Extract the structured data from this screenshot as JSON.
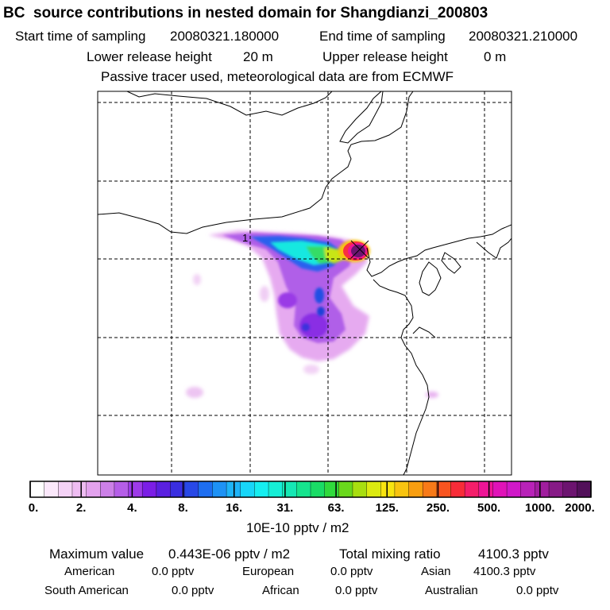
{
  "header": {
    "title": "BC  source contributions in nested domain for Shangdianzi_200803",
    "start_label": "Start time of sampling",
    "start_value": "20080321.180000",
    "end_label": "End time of sampling",
    "end_value": "20080321.210000",
    "lower_label": "Lower release height",
    "lower_value": "20 m",
    "upper_label": "Upper release height",
    "upper_value": "0 m",
    "note": "Passive tracer used, meteorological data are from ECMWF"
  },
  "map": {
    "site_marker_label": "1",
    "gridlines": "dashed"
  },
  "colorbar": {
    "unit": "10E-10 pptv / m2",
    "tick_labels": [
      "0.",
      "2.",
      "4.",
      "8.",
      "16.",
      "31.",
      "63.",
      "125.",
      "250.",
      "500.",
      "1000.",
      "2000."
    ],
    "colors": [
      "#ffffff",
      "#fbe8fb",
      "#f4d2f6",
      "#eebcf2",
      "#e3a2ee",
      "#cc80e8",
      "#b55ee8",
      "#9d3ae8",
      "#7b1ee6",
      "#5a20e0",
      "#3a2ee0",
      "#2848e6",
      "#1e6ef0",
      "#1e92f5",
      "#1eb4f8",
      "#18d6f8",
      "#16eef0",
      "#16eed6",
      "#16e8b4",
      "#16e48e",
      "#1adc66",
      "#30da3c",
      "#6ad81c",
      "#a8de10",
      "#dcea10",
      "#f8e410",
      "#f8c410",
      "#f89e10",
      "#f87a18",
      "#f85420",
      "#f82c38",
      "#f41e6a",
      "#ee1496",
      "#e012b8",
      "#d018c8",
      "#b822b8",
      "#a01e9e",
      "#861a86",
      "#6c1470",
      "#52105a"
    ]
  },
  "stats": {
    "max_label": "Maximum value",
    "max_value": "0.443E-06 pptv / m2",
    "total_label": "Total mixing ratio",
    "total_value": "4100.3 pptv",
    "american_label": "American",
    "american_value": "0.0 pptv",
    "european_label": "European",
    "european_value": "0.0 pptv",
    "asian_label": "Asian",
    "asian_value": "4100.3 pptv",
    "south_american_label": "South American",
    "south_american_value": "0.0 pptv",
    "african_label": "African",
    "african_value": "0.0 pptv",
    "australian_label": "Australian",
    "australian_value": "0.0 pptv"
  }
}
